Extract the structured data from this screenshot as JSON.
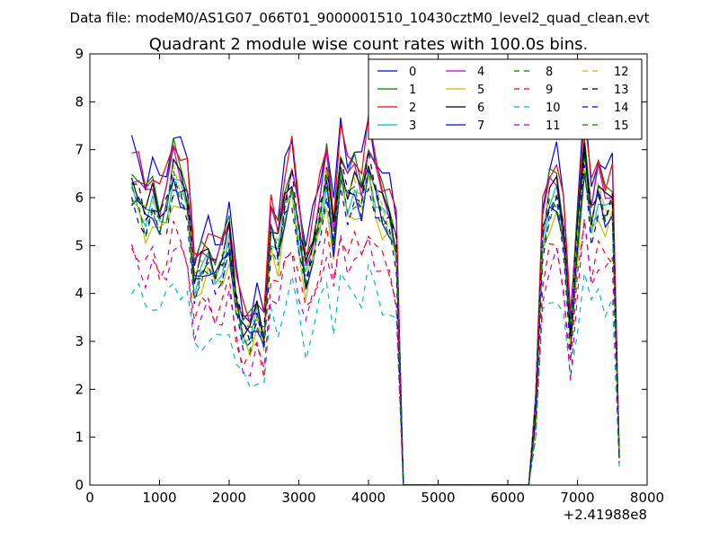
{
  "header": {
    "data_file": "Data file: modeM0/AS1G07_066T01_9000001510_10430cztM0_level2_quad_clean.evt"
  },
  "chart_data": {
    "type": "line",
    "title": "Quadrant 2 module wise count rates with 100.0s bins.",
    "xlabel": "",
    "ylabel": "",
    "xlim": [
      0,
      8000
    ],
    "ylim": [
      0,
      9
    ],
    "x_offset_label": "+2.41988e8",
    "xticks": [
      0,
      1000,
      2000,
      3000,
      4000,
      5000,
      6000,
      7000,
      8000
    ],
    "yticks": [
      0,
      1,
      2,
      3,
      4,
      5,
      6,
      7,
      8,
      9
    ],
    "grid": false,
    "legend_position": "top-right",
    "segments": [
      [
        600,
        4500
      ],
      [
        6300,
        7600
      ]
    ],
    "zero_points": [
      4500,
      4600,
      4700,
      4800,
      4900,
      5000,
      5100,
      5200,
      5300,
      5400,
      5500,
      5600,
      5700,
      5800,
      5900,
      6000,
      6100,
      6200,
      6300
    ],
    "profile_x": [
      600,
      700,
      800,
      900,
      1000,
      1100,
      1200,
      1300,
      1400,
      1500,
      1600,
      1700,
      1800,
      1900,
      2000,
      2100,
      2200,
      2300,
      2400,
      2500,
      2600,
      2700,
      2800,
      2900,
      3000,
      3100,
      3200,
      3300,
      3400,
      3500,
      3600,
      3700,
      3800,
      3900,
      4000,
      4100,
      4200,
      4300,
      4400,
      4500,
      6300,
      6400,
      6500,
      6600,
      6700,
      6800,
      6900,
      7000,
      7100,
      7200,
      7300,
      7400,
      7500,
      7600
    ],
    "profile": [
      6.3,
      6.1,
      5.7,
      6.0,
      5.6,
      5.9,
      6.6,
      6.3,
      6.0,
      4.3,
      4.6,
      4.8,
      4.5,
      4.7,
      5.2,
      3.9,
      3.3,
      3.2,
      3.6,
      3.1,
      5.4,
      5.0,
      5.9,
      6.4,
      5.4,
      4.4,
      5.0,
      5.7,
      6.5,
      5.2,
      6.7,
      6.1,
      6.3,
      6.0,
      6.8,
      6.2,
      5.8,
      5.6,
      5.0,
      0.0,
      0.0,
      1.5,
      5.3,
      6.0,
      6.2,
      5.3,
      3.2,
      5.2,
      7.0,
      5.6,
      6.2,
      5.8,
      6.0,
      0.6
    ],
    "series": [
      {
        "name": "0",
        "color": "#0000ff",
        "dash": "solid",
        "scale": 1.12,
        "shift": 0.0
      },
      {
        "name": "1",
        "color": "#008000",
        "dash": "solid",
        "scale": 1.06,
        "shift": 0.0
      },
      {
        "name": "2",
        "color": "#ff0000",
        "dash": "solid",
        "scale": 1.1,
        "shift": 0.0
      },
      {
        "name": "3",
        "color": "#00bfbf",
        "dash": "solid",
        "scale": 0.97,
        "shift": 0.0
      },
      {
        "name": "4",
        "color": "#bf00bf",
        "dash": "solid",
        "scale": 1.04,
        "shift": 0.0
      },
      {
        "name": "5",
        "color": "#bfbf00",
        "dash": "solid",
        "scale": 0.92,
        "shift": 0.0
      },
      {
        "name": "6",
        "color": "#000000",
        "dash": "solid",
        "scale": 1.01,
        "shift": 0.0
      },
      {
        "name": "7",
        "color": "#0000ff",
        "dash": "solid",
        "scale": 0.96,
        "shift": 0.0
      },
      {
        "name": "8",
        "color": "#008000",
        "dash": "dashed",
        "scale": 0.95,
        "shift": 0.0
      },
      {
        "name": "9",
        "color": "#ff0000",
        "dash": "dashed",
        "scale": 0.8,
        "shift": 0.0
      },
      {
        "name": "10",
        "color": "#00bfbf",
        "dash": "dashed",
        "scale": 0.65,
        "shift": 0.0
      },
      {
        "name": "11",
        "color": "#bf00bf",
        "dash": "dashed",
        "scale": 0.76,
        "shift": 0.0
      },
      {
        "name": "12",
        "color": "#bfbf00",
        "dash": "dashed",
        "scale": 0.98,
        "shift": 0.0
      },
      {
        "name": "13",
        "color": "#000000",
        "dash": "dashed",
        "scale": 0.99,
        "shift": 0.0
      },
      {
        "name": "14",
        "color": "#0000ff",
        "dash": "dashed",
        "scale": 0.93,
        "shift": 0.0
      },
      {
        "name": "15",
        "color": "#008000",
        "dash": "dashed",
        "scale": 0.97,
        "shift": 0.0
      }
    ]
  }
}
